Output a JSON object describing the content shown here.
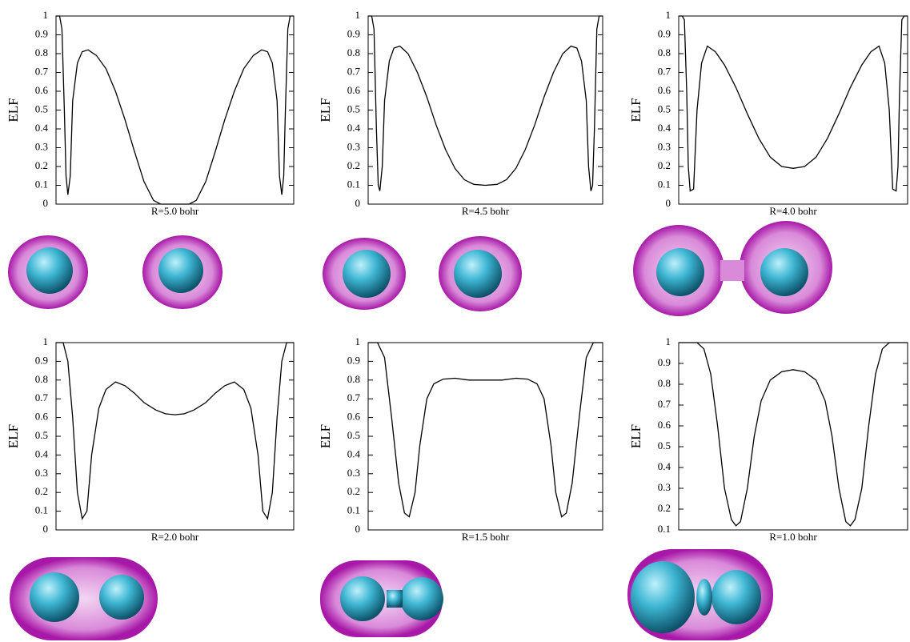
{
  "chart_data": [
    {
      "type": "line",
      "ylabel": "ELF",
      "xlabel": "R=5.0 bohr",
      "color": "#000000",
      "xlim": [
        0,
        100
      ],
      "ylim": [
        0,
        1
      ],
      "yticks": [
        0,
        0.1,
        0.2,
        0.3,
        0.4,
        0.5,
        0.6,
        0.7,
        0.8,
        0.9,
        1
      ],
      "x": [
        0,
        1.5,
        2.5,
        3.5,
        4.2,
        5,
        6,
        7,
        9,
        11,
        13.5,
        17,
        21,
        25,
        29,
        33,
        37,
        41,
        44,
        50,
        56,
        59,
        63,
        67,
        71,
        75,
        79,
        83,
        86.5,
        89,
        91,
        93,
        94,
        95,
        95.8,
        96.5,
        97.5,
        98.5,
        100
      ],
      "values": [
        1,
        1,
        0.93,
        0.5,
        0.15,
        0.05,
        0.15,
        0.55,
        0.75,
        0.81,
        0.82,
        0.79,
        0.72,
        0.6,
        0.45,
        0.28,
        0.12,
        0.02,
        0,
        0,
        0,
        0.02,
        0.12,
        0.28,
        0.45,
        0.6,
        0.72,
        0.79,
        0.82,
        0.81,
        0.75,
        0.55,
        0.15,
        0.05,
        0.15,
        0.5,
        0.93,
        1,
        1
      ]
    },
    {
      "type": "line",
      "ylabel": "ELF",
      "xlabel": "R=4.5 bohr",
      "color": "#000000",
      "xlim": [
        0,
        100
      ],
      "ylim": [
        0,
        1
      ],
      "yticks": [
        0,
        0.1,
        0.2,
        0.3,
        0.4,
        0.5,
        0.6,
        0.7,
        0.8,
        0.9,
        1
      ],
      "x": [
        0,
        1.5,
        2.5,
        3.5,
        4.3,
        5,
        6,
        7,
        9,
        11,
        13.5,
        17,
        21,
        25,
        29,
        33,
        37,
        41,
        45,
        50,
        55,
        59,
        63,
        67,
        71,
        75,
        79,
        83,
        86.5,
        89,
        91,
        93,
        94,
        95,
        95.7,
        96.5,
        97.5,
        98.5,
        100
      ],
      "values": [
        1,
        1,
        0.93,
        0.4,
        0.1,
        0.07,
        0.2,
        0.55,
        0.76,
        0.83,
        0.84,
        0.8,
        0.7,
        0.57,
        0.42,
        0.29,
        0.19,
        0.13,
        0.105,
        0.1,
        0.105,
        0.13,
        0.19,
        0.29,
        0.42,
        0.57,
        0.7,
        0.8,
        0.84,
        0.83,
        0.76,
        0.55,
        0.2,
        0.07,
        0.1,
        0.4,
        0.93,
        1,
        1
      ]
    },
    {
      "type": "line",
      "ylabel": "ELF",
      "xlabel": "R=4.0 bohr",
      "color": "#000000",
      "xlim": [
        0,
        100
      ],
      "ylim": [
        0,
        1
      ],
      "yticks": [
        0,
        0.1,
        0.2,
        0.3,
        0.4,
        0.5,
        0.6,
        0.7,
        0.8,
        0.9,
        1
      ],
      "x": [
        0,
        1.5,
        2.5,
        3.5,
        4.2,
        5,
        6.5,
        8,
        10,
        12.5,
        16,
        20,
        25,
        30,
        35,
        40,
        45,
        50,
        55,
        60,
        65,
        70,
        75,
        80,
        84,
        87.5,
        90,
        92,
        93.5,
        95,
        95.8,
        96.5,
        97.5,
        98.5,
        100
      ],
      "values": [
        1,
        1,
        0.98,
        0.6,
        0.2,
        0.07,
        0.08,
        0.5,
        0.75,
        0.84,
        0.81,
        0.74,
        0.62,
        0.48,
        0.35,
        0.25,
        0.2,
        0.19,
        0.2,
        0.25,
        0.35,
        0.48,
        0.62,
        0.74,
        0.81,
        0.84,
        0.75,
        0.5,
        0.08,
        0.07,
        0.2,
        0.6,
        0.98,
        1,
        1
      ]
    },
    {
      "type": "line",
      "ylabel": "ELF",
      "xlabel": "R=2.0 bohr",
      "color": "#000000",
      "xlim": [
        0,
        100
      ],
      "ylim": [
        0,
        1
      ],
      "yticks": [
        0,
        0.1,
        0.2,
        0.3,
        0.4,
        0.5,
        0.6,
        0.7,
        0.8,
        0.9,
        1
      ],
      "x": [
        0,
        3,
        5,
        7,
        9,
        11,
        13,
        15,
        18,
        21,
        25,
        29,
        33,
        37,
        42,
        46,
        50,
        54,
        58,
        63,
        67,
        71,
        75,
        79,
        82,
        85,
        87,
        89,
        91,
        93,
        95,
        97,
        100
      ],
      "values": [
        1,
        1,
        0.9,
        0.6,
        0.2,
        0.06,
        0.1,
        0.4,
        0.65,
        0.75,
        0.79,
        0.77,
        0.73,
        0.68,
        0.64,
        0.62,
        0.615,
        0.62,
        0.64,
        0.68,
        0.73,
        0.77,
        0.79,
        0.75,
        0.65,
        0.4,
        0.1,
        0.06,
        0.2,
        0.6,
        0.9,
        1,
        1
      ]
    },
    {
      "type": "line",
      "ylabel": "ELF",
      "xlabel": "R=1.5 bohr",
      "color": "#000000",
      "xlim": [
        0,
        100
      ],
      "ylim": [
        0,
        1
      ],
      "yticks": [
        0,
        0.1,
        0.2,
        0.3,
        0.4,
        0.5,
        0.6,
        0.7,
        0.8,
        0.9,
        1
      ],
      "x": [
        0,
        4,
        7,
        10,
        13,
        15.5,
        17.5,
        20,
        22,
        25,
        28,
        32,
        37,
        43,
        50,
        57,
        63,
        68,
        72,
        75,
        78,
        80,
        82.5,
        84.5,
        87,
        90,
        93,
        96,
        100
      ],
      "values": [
        1,
        1,
        0.92,
        0.6,
        0.25,
        0.09,
        0.07,
        0.2,
        0.45,
        0.7,
        0.78,
        0.805,
        0.81,
        0.8,
        0.8,
        0.8,
        0.81,
        0.805,
        0.78,
        0.7,
        0.45,
        0.2,
        0.07,
        0.09,
        0.25,
        0.6,
        0.92,
        1,
        1
      ]
    },
    {
      "type": "line",
      "ylabel": "ELF",
      "xlabel": "R=1.0 bohr",
      "color": "#000000",
      "xlim": [
        0,
        100
      ],
      "ylim": [
        0.1,
        1
      ],
      "yticks": [
        0.1,
        0.2,
        0.3,
        0.4,
        0.5,
        0.6,
        0.7,
        0.8,
        0.9,
        1
      ],
      "x": [
        0,
        8,
        11,
        14,
        17,
        20,
        23,
        25,
        27,
        30,
        33,
        36,
        40,
        45,
        50,
        55,
        60,
        64,
        67,
        70,
        73,
        75,
        77,
        80,
        83,
        86,
        89,
        92,
        100
      ],
      "values": [
        1,
        1,
        0.97,
        0.85,
        0.6,
        0.3,
        0.15,
        0.12,
        0.14,
        0.3,
        0.55,
        0.72,
        0.82,
        0.86,
        0.87,
        0.86,
        0.82,
        0.72,
        0.55,
        0.3,
        0.14,
        0.12,
        0.15,
        0.3,
        0.6,
        0.85,
        0.97,
        1,
        1
      ]
    }
  ]
}
